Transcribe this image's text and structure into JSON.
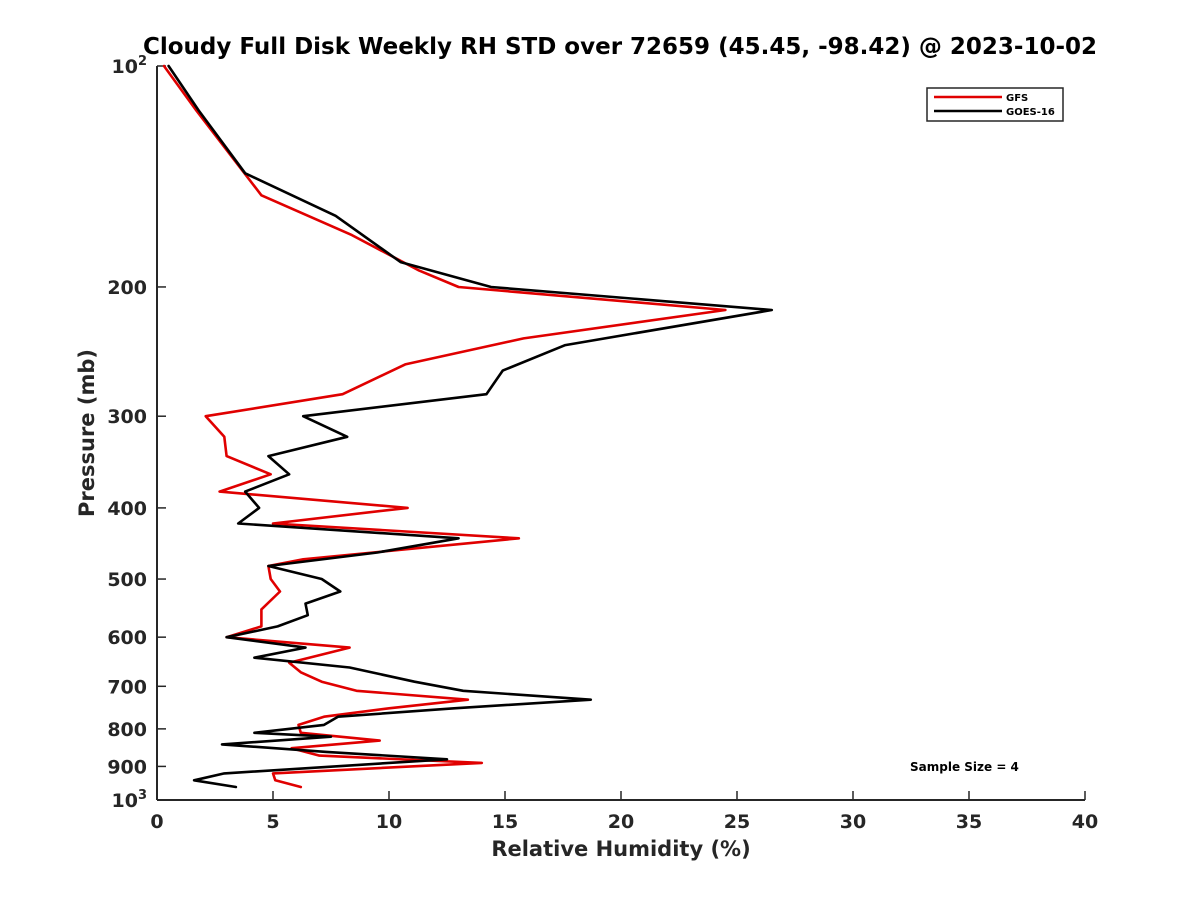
{
  "chart_data": {
    "type": "line",
    "title": "Cloudy Full Disk Weekly RH STD over 72659 (45.45, -98.42) @ 2023-10-02",
    "xlabel": "Relative Humidity (%)",
    "ylabel": "Pressure (mb)",
    "xlim": [
      0,
      40
    ],
    "ylim": [
      100,
      1000
    ],
    "y_scale": "log",
    "y_reversed": true,
    "x_ticks": [
      0,
      5,
      10,
      15,
      20,
      25,
      30,
      35,
      40
    ],
    "y_ticks": [
      {
        "value": 100,
        "label": "10",
        "sup": "2"
      },
      {
        "value": 200,
        "label": "200",
        "sup": ""
      },
      {
        "value": 300,
        "label": "300",
        "sup": ""
      },
      {
        "value": 400,
        "label": "400",
        "sup": ""
      },
      {
        "value": 500,
        "label": "500",
        "sup": ""
      },
      {
        "value": 600,
        "label": "600",
        "sup": ""
      },
      {
        "value": 700,
        "label": "700",
        "sup": ""
      },
      {
        "value": 800,
        "label": "800",
        "sup": ""
      },
      {
        "value": 900,
        "label": "900",
        "sup": ""
      },
      {
        "value": 1000,
        "label": "10",
        "sup": "3"
      }
    ],
    "grid": false,
    "legend_position": "top-right",
    "annotation": "Sample Size = 4",
    "series": [
      {
        "name": "GFS",
        "color": "#e00000",
        "points": [
          [
            0.3,
            100
          ],
          [
            1.7,
            115
          ],
          [
            4.5,
            150
          ],
          [
            8.4,
            170
          ],
          [
            11.3,
            190
          ],
          [
            13.0,
            200
          ],
          [
            24.5,
            215
          ],
          [
            15.8,
            235
          ],
          [
            10.7,
            255
          ],
          [
            8.0,
            280
          ],
          [
            2.1,
            300
          ],
          [
            2.9,
            320
          ],
          [
            3.0,
            340
          ],
          [
            4.9,
            360
          ],
          [
            2.7,
            380
          ],
          [
            10.8,
            400
          ],
          [
            5.0,
            420
          ],
          [
            15.6,
            440
          ],
          [
            6.3,
            470
          ],
          [
            4.8,
            480
          ],
          [
            4.9,
            500
          ],
          [
            5.3,
            520
          ],
          [
            4.5,
            550
          ],
          [
            4.5,
            580
          ],
          [
            3.0,
            600
          ],
          [
            8.3,
            620
          ],
          [
            5.7,
            650
          ],
          [
            6.2,
            670
          ],
          [
            7.1,
            690
          ],
          [
            8.6,
            710
          ],
          [
            13.4,
            730
          ],
          [
            10.0,
            750
          ],
          [
            7.2,
            770
          ],
          [
            6.1,
            790
          ],
          [
            6.2,
            810
          ],
          [
            9.6,
            830
          ],
          [
            5.8,
            850
          ],
          [
            7.0,
            870
          ],
          [
            14.0,
            890
          ],
          [
            5.0,
            920
          ],
          [
            5.1,
            940
          ],
          [
            6.2,
            960
          ]
        ]
      },
      {
        "name": "GOES-16",
        "color": "#000000",
        "points": [
          [
            0.5,
            100
          ],
          [
            1.8,
            115
          ],
          [
            3.8,
            140
          ],
          [
            7.7,
            160
          ],
          [
            10.5,
            185
          ],
          [
            14.4,
            200
          ],
          [
            26.5,
            215
          ],
          [
            17.6,
            240
          ],
          [
            14.9,
            260
          ],
          [
            14.2,
            280
          ],
          [
            6.3,
            300
          ],
          [
            8.2,
            320
          ],
          [
            4.8,
            340
          ],
          [
            5.7,
            360
          ],
          [
            3.8,
            380
          ],
          [
            4.4,
            400
          ],
          [
            3.5,
            420
          ],
          [
            13.0,
            440
          ],
          [
            9.5,
            460
          ],
          [
            4.8,
            480
          ],
          [
            7.1,
            500
          ],
          [
            7.9,
            520
          ],
          [
            6.4,
            540
          ],
          [
            6.5,
            560
          ],
          [
            5.2,
            580
          ],
          [
            3.0,
            600
          ],
          [
            6.4,
            620
          ],
          [
            4.2,
            640
          ],
          [
            8.3,
            660
          ],
          [
            11.1,
            690
          ],
          [
            13.2,
            710
          ],
          [
            18.7,
            730
          ],
          [
            12.8,
            750
          ],
          [
            7.8,
            770
          ],
          [
            7.2,
            790
          ],
          [
            4.2,
            810
          ],
          [
            7.5,
            820
          ],
          [
            2.8,
            840
          ],
          [
            7.3,
            860
          ],
          [
            12.5,
            880
          ],
          [
            2.9,
            920
          ],
          [
            1.6,
            940
          ],
          [
            3.4,
            960
          ]
        ]
      }
    ]
  }
}
